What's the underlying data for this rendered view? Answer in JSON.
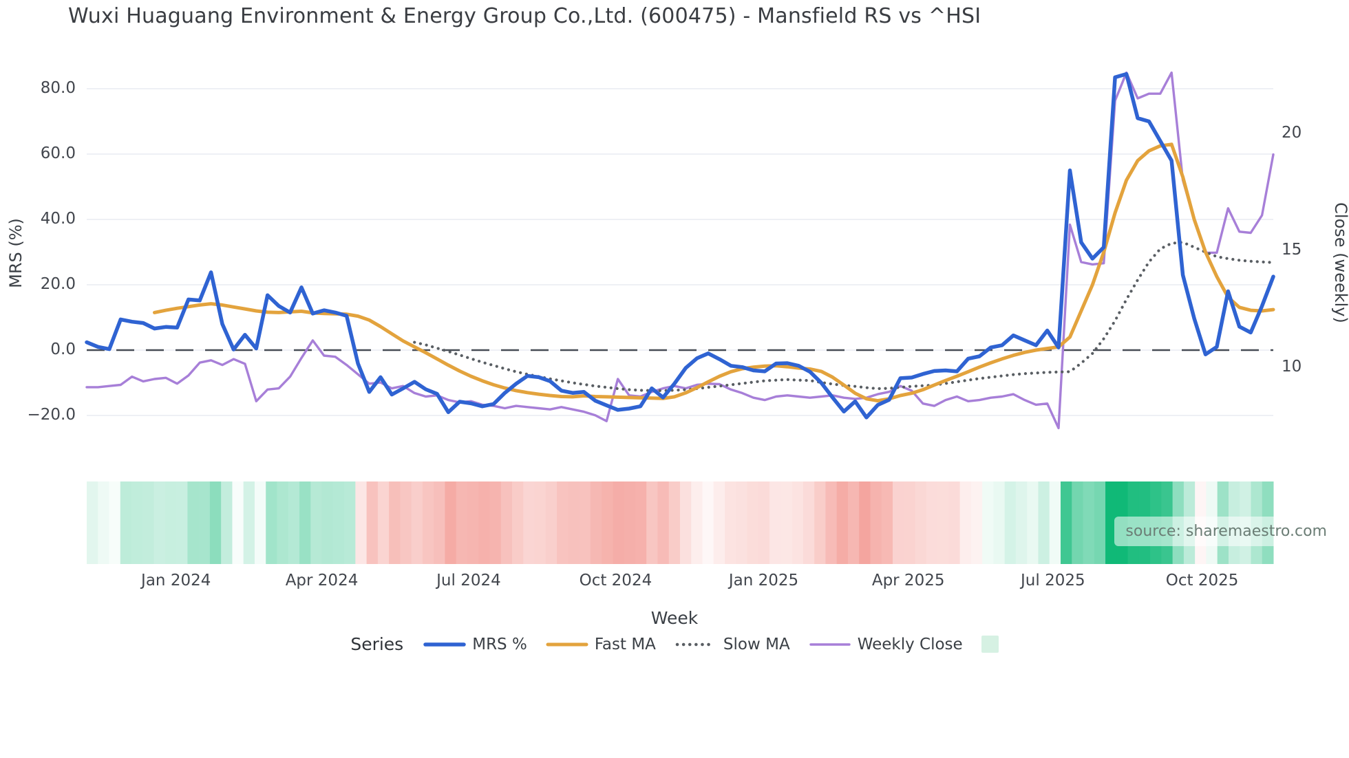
{
  "title": "Wuxi Huaguang Environment & Energy Group Co.,Ltd. (600475) - Mansfield RS vs ^HSI",
  "watermark": "source: sharemaestro.com",
  "legend": {
    "title": "Series",
    "items": [
      "MRS %",
      "Fast MA",
      "Slow MA",
      "Weekly Close"
    ],
    "heat_swatch_color": "#d6f1e3"
  },
  "chart_data": {
    "type": "line",
    "xlabel": "Week",
    "ylabel_left": "MRS (%)",
    "ylabel_right": "Close (weekly)",
    "x_tick_labels": [
      "Jan 2024",
      "Apr 2024",
      "Jul 2024",
      "Oct 2024",
      "Jan 2025",
      "Apr 2025",
      "Jul 2025",
      "Oct 2025"
    ],
    "x_tick_weeks": [
      7.9,
      20.8,
      33.8,
      46.8,
      59.9,
      72.7,
      85.5,
      98.7
    ],
    "y_left_ticks": [
      80,
      60,
      40,
      20,
      0,
      -20
    ],
    "y_left_tick_labels": [
      "80.0",
      "60.0",
      "40.0",
      "20.0",
      "0.0",
      "−20.0"
    ],
    "y_right_ticks": [
      20,
      15,
      10
    ],
    "y_right_tick_labels": [
      "20",
      "15",
      "10"
    ],
    "zero_line_value": 0,
    "ylim_left": [
      -25,
      88
    ],
    "ylim_right": [
      6.5,
      23.5
    ],
    "grid": "horizontal-only",
    "legend_position": "bottom",
    "series": [
      {
        "name": "MRS %",
        "axis": "left",
        "color": "#2f63d2",
        "style": "solid",
        "width": 5.5,
        "values": [
          2.4,
          1.0,
          0.3,
          9.4,
          8.7,
          8.3,
          6.6,
          7.1,
          6.9,
          15.5,
          15.2,
          23.8,
          8.0,
          0.2,
          4.7,
          0.5,
          16.8,
          13.5,
          11.5,
          19.2,
          11.2,
          12.2,
          11.5,
          10.5,
          -4.1,
          -12.8,
          -8.3,
          -13.6,
          -11.7,
          -9.7,
          -12.0,
          -13.4,
          -19.0,
          -15.8,
          -16.3,
          -17.2,
          -16.5,
          -13.1,
          -10.3,
          -7.9,
          -8.3,
          -9.5,
          -12.4,
          -13.1,
          -12.8,
          -15.5,
          -16.9,
          -18.3,
          -17.9,
          -17.2,
          -11.7,
          -14.5,
          -10.3,
          -5.5,
          -2.5,
          -1.0,
          -2.8,
          -4.8,
          -5.2,
          -6.2,
          -6.5,
          -4.1,
          -4.0,
          -4.8,
          -6.6,
          -10.0,
          -14.5,
          -18.8,
          -15.7,
          -20.6,
          -16.8,
          -15.2,
          -8.6,
          -8.4,
          -7.3,
          -6.4,
          -6.2,
          -6.5,
          -2.6,
          -1.9,
          0.8,
          1.5,
          4.5,
          3.0,
          1.5,
          6.0,
          0.8,
          55.0,
          33.0,
          28.0,
          31.5,
          83.5,
          84.5,
          71.0,
          70.0,
          64.0,
          58.0,
          23.0,
          9.7,
          -1.3,
          1.0,
          18.0,
          7.2,
          5.4,
          13.5,
          22.5
        ]
      },
      {
        "name": "Fast MA",
        "axis": "left",
        "color": "#e3a33d",
        "style": "solid",
        "width": 5,
        "values": [
          null,
          null,
          null,
          null,
          null,
          null,
          11.5,
          12.2,
          12.8,
          13.3,
          13.8,
          14.2,
          13.8,
          13.2,
          12.6,
          12.0,
          11.6,
          11.5,
          11.7,
          11.9,
          11.4,
          11.2,
          11.1,
          11.0,
          10.4,
          9.2,
          7.2,
          5.0,
          2.8,
          1.0,
          -0.8,
          -2.7,
          -4.6,
          -6.4,
          -8.0,
          -9.4,
          -10.6,
          -11.6,
          -12.4,
          -13.0,
          -13.5,
          -13.9,
          -14.2,
          -14.3,
          -14.0,
          -14.2,
          -14.3,
          -14.4,
          -14.5,
          -14.6,
          -14.7,
          -14.8,
          -14.3,
          -13.1,
          -11.5,
          -9.7,
          -8.0,
          -6.6,
          -5.7,
          -5.2,
          -4.9,
          -4.8,
          -5.1,
          -5.5,
          -5.8,
          -6.5,
          -8.3,
          -10.7,
          -13.2,
          -14.9,
          -15.5,
          -14.9,
          -13.9,
          -13.2,
          -12.1,
          -10.7,
          -9.3,
          -8.0,
          -6.6,
          -5.2,
          -3.9,
          -2.7,
          -1.6,
          -0.7,
          0.0,
          0.5,
          1.0,
          4.0,
          12.0,
          20.0,
          30.0,
          42.0,
          52.0,
          58.0,
          61.0,
          62.5,
          63.0,
          53.0,
          40.0,
          30.0,
          22.5,
          16.2,
          13.1,
          12.2,
          12.0,
          12.4
        ]
      },
      {
        "name": "Slow MA",
        "axis": "left",
        "color": "#595e63",
        "style": "dotted",
        "width": 4.2,
        "values": [
          null,
          null,
          null,
          null,
          null,
          null,
          null,
          null,
          null,
          null,
          null,
          null,
          null,
          null,
          null,
          null,
          null,
          null,
          null,
          null,
          null,
          null,
          null,
          null,
          null,
          null,
          null,
          null,
          null,
          2.4,
          1.6,
          0.6,
          -0.4,
          -1.5,
          -2.6,
          -3.7,
          -4.7,
          -5.7,
          -6.6,
          -7.4,
          -8.1,
          -8.8,
          -9.4,
          -10.0,
          -10.5,
          -11.0,
          -11.4,
          -11.8,
          -12.1,
          -12.3,
          -12.4,
          -12.4,
          -12.3,
          -12.1,
          -11.8,
          -11.4,
          -11.0,
          -10.6,
          -10.2,
          -9.8,
          -9.4,
          -9.2,
          -9.0,
          -9.2,
          -9.3,
          -9.9,
          -10.4,
          -10.8,
          -11.1,
          -11.5,
          -11.8,
          -11.7,
          -11.4,
          -11.1,
          -10.9,
          -10.7,
          -10.2,
          -9.7,
          -9.2,
          -8.7,
          -8.3,
          -7.9,
          -7.5,
          -7.2,
          -7.0,
          -6.8,
          -6.7,
          -6.6,
          -4.0,
          -1.0,
          3.5,
          9.0,
          15.5,
          21.5,
          27.0,
          31.0,
          32.7,
          33.0,
          31.5,
          30.0,
          28.6,
          28.0,
          27.5,
          27.2,
          27.0,
          26.8
        ]
      },
      {
        "name": "Weekly Close",
        "axis": "right",
        "color": "#a77fd8",
        "style": "solid",
        "width": 3.4,
        "values": [
          9.15,
          9.15,
          9.2,
          9.25,
          9.6,
          9.4,
          9.5,
          9.55,
          9.3,
          9.65,
          10.2,
          10.3,
          10.1,
          10.35,
          10.15,
          8.55,
          9.05,
          9.1,
          9.6,
          10.4,
          11.15,
          10.5,
          10.45,
          10.1,
          9.7,
          9.3,
          9.35,
          9.1,
          9.2,
          8.9,
          8.75,
          8.8,
          8.6,
          8.5,
          8.55,
          8.4,
          8.35,
          8.25,
          8.35,
          8.3,
          8.25,
          8.2,
          8.3,
          8.2,
          8.1,
          7.95,
          7.7,
          9.5,
          8.8,
          8.75,
          8.95,
          9.1,
          9.2,
          9.1,
          9.25,
          9.3,
          9.28,
          9.05,
          8.9,
          8.7,
          8.6,
          8.75,
          8.8,
          8.75,
          8.7,
          8.75,
          8.8,
          8.7,
          8.65,
          8.7,
          8.85,
          8.95,
          9.2,
          9.0,
          8.45,
          8.35,
          8.6,
          8.75,
          8.55,
          8.6,
          8.7,
          8.75,
          8.85,
          8.6,
          8.4,
          8.45,
          7.4,
          16.1,
          14.5,
          14.4,
          14.45,
          21.4,
          22.6,
          21.5,
          21.7,
          21.7,
          22.6,
          18.0,
          16.3,
          14.9,
          14.9,
          16.8,
          15.8,
          15.75,
          16.5,
          19.1
        ]
      }
    ],
    "heat_strip": {
      "based_on_series": "MRS %",
      "positive_max_color": "#10b977",
      "negative_max_color": "#f4a49e",
      "neutral_color": "#ffffff"
    }
  }
}
